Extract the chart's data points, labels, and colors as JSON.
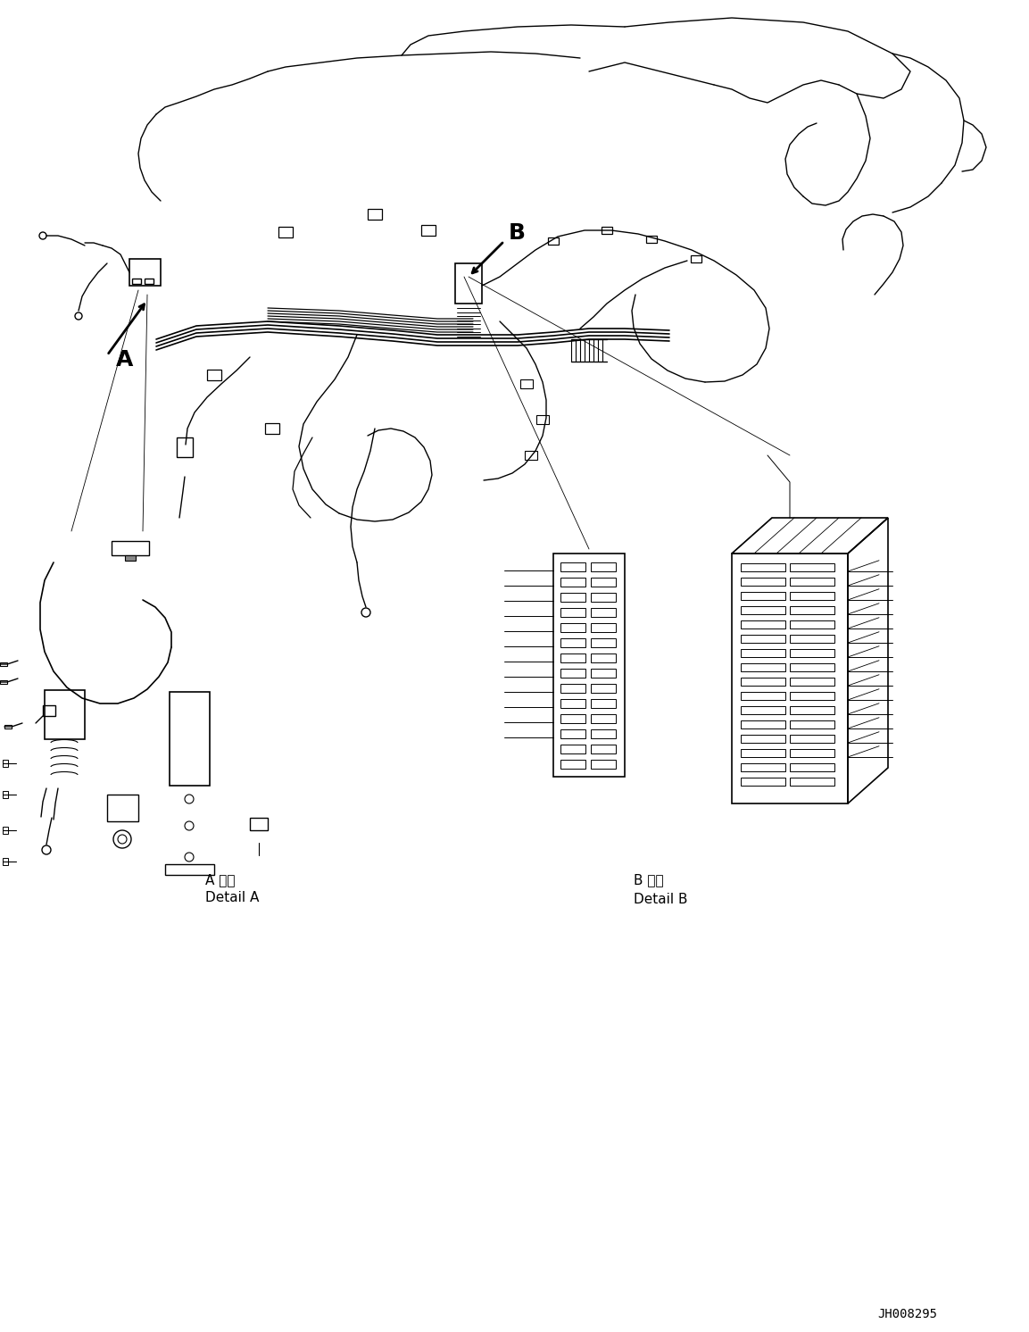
{
  "bg_color": "#ffffff",
  "line_color": "#000000",
  "figure_width": 11.53,
  "figure_height": 14.92,
  "label_A": "A",
  "label_B": "B",
  "detail_A_jp": "A 詳細",
  "detail_A_en": "Detail A",
  "detail_B_jp": "B 詳細",
  "detail_B_en": "Detail B",
  "part_number": "JH008295"
}
